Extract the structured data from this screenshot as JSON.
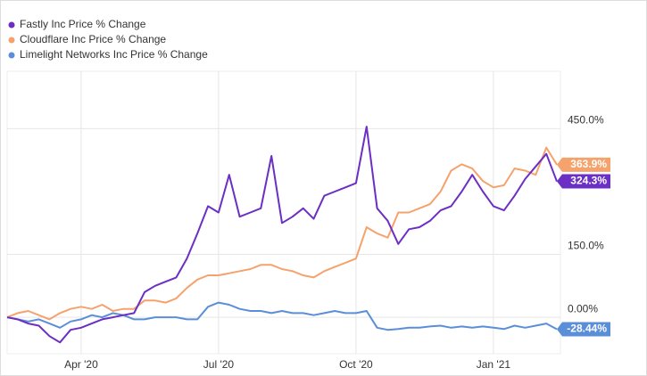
{
  "chart_data": {
    "type": "line",
    "categories": [
      null,
      null,
      null,
      null,
      null,
      null,
      null,
      "Apr '20",
      null,
      null,
      null,
      null,
      null,
      null,
      null,
      null,
      null,
      null,
      null,
      null,
      "Jul '20",
      null,
      null,
      null,
      null,
      null,
      null,
      null,
      null,
      null,
      null,
      null,
      null,
      "Oct '20",
      null,
      null,
      null,
      null,
      null,
      null,
      null,
      null,
      null,
      null,
      null,
      null,
      "Jan '21",
      null,
      null,
      null,
      null,
      null,
      null
    ],
    "ylim": [
      -87,
      587
    ],
    "yticks": [
      {
        "value": 0,
        "label": "0.00%"
      },
      {
        "value": 150,
        "label": "150.0%"
      },
      {
        "value": 450,
        "label": "450.0%"
      }
    ],
    "grid": true,
    "legend": "top-left",
    "series": [
      {
        "name": "Fastly Inc Price % Change",
        "color": "#6b2fc4",
        "values": [
          0,
          -5,
          -15,
          -20,
          -45,
          -60,
          -30,
          -25,
          -15,
          -5,
          0,
          5,
          10,
          60,
          75,
          85,
          95,
          140,
          200,
          265,
          250,
          340,
          240,
          250,
          260,
          385,
          225,
          240,
          260,
          235,
          290,
          300,
          310,
          320,
          455,
          260,
          230,
          175,
          210,
          215,
          230,
          255,
          265,
          300,
          340,
          300,
          265,
          255,
          290,
          330,
          360,
          390,
          324.3
        ],
        "value_labels": [
          null,
          null,
          null,
          null,
          null,
          null,
          null,
          null,
          null,
          null,
          null,
          null,
          null,
          null,
          null,
          null,
          null,
          null,
          null,
          null,
          null,
          null,
          null,
          null,
          null,
          null,
          null,
          null,
          null,
          null,
          null,
          null,
          null,
          null,
          null,
          null,
          null,
          null,
          null,
          null,
          null,
          null,
          null,
          null,
          null,
          null,
          null,
          null,
          null,
          null,
          null,
          null,
          "324.3%"
        ]
      },
      {
        "name": "Cloudflare Inc Price % Change",
        "color": "#f5a26c",
        "values": [
          0,
          10,
          15,
          5,
          -5,
          10,
          20,
          25,
          20,
          30,
          15,
          20,
          20,
          40,
          40,
          35,
          45,
          70,
          90,
          100,
          100,
          105,
          110,
          115,
          125,
          125,
          115,
          110,
          100,
          95,
          110,
          120,
          130,
          140,
          215,
          200,
          190,
          250,
          250,
          260,
          270,
          300,
          350,
          365,
          355,
          325,
          310,
          315,
          355,
          350,
          340,
          405,
          363.9
        ],
        "value_labels": [
          null,
          null,
          null,
          null,
          null,
          null,
          null,
          null,
          null,
          null,
          null,
          null,
          null,
          null,
          null,
          null,
          null,
          null,
          null,
          null,
          null,
          null,
          null,
          null,
          null,
          null,
          null,
          null,
          null,
          null,
          null,
          null,
          null,
          null,
          null,
          null,
          null,
          null,
          null,
          null,
          null,
          null,
          null,
          null,
          null,
          null,
          null,
          null,
          null,
          null,
          null,
          null,
          "363.9%"
        ]
      },
      {
        "name": "Limelight Networks Inc Price % Change",
        "color": "#5b8ed9",
        "values": [
          0,
          -5,
          -10,
          -5,
          -15,
          -25,
          -10,
          -5,
          5,
          0,
          10,
          5,
          -5,
          -5,
          0,
          0,
          0,
          -5,
          -5,
          25,
          35,
          30,
          20,
          15,
          15,
          10,
          15,
          10,
          10,
          5,
          10,
          15,
          10,
          10,
          15,
          -25,
          -30,
          -28,
          -25,
          -25,
          -22,
          -20,
          -25,
          -22,
          -25,
          -22,
          -25,
          -28,
          -20,
          -25,
          -20,
          -15,
          -28.44
        ],
        "value_labels": [
          null,
          null,
          null,
          null,
          null,
          null,
          null,
          null,
          null,
          null,
          null,
          null,
          null,
          null,
          null,
          null,
          null,
          null,
          null,
          null,
          null,
          null,
          null,
          null,
          null,
          null,
          null,
          null,
          null,
          null,
          null,
          null,
          null,
          null,
          null,
          null,
          null,
          null,
          null,
          null,
          null,
          null,
          null,
          null,
          null,
          null,
          null,
          null,
          null,
          null,
          null,
          null,
          "-28.44%"
        ]
      }
    ]
  }
}
